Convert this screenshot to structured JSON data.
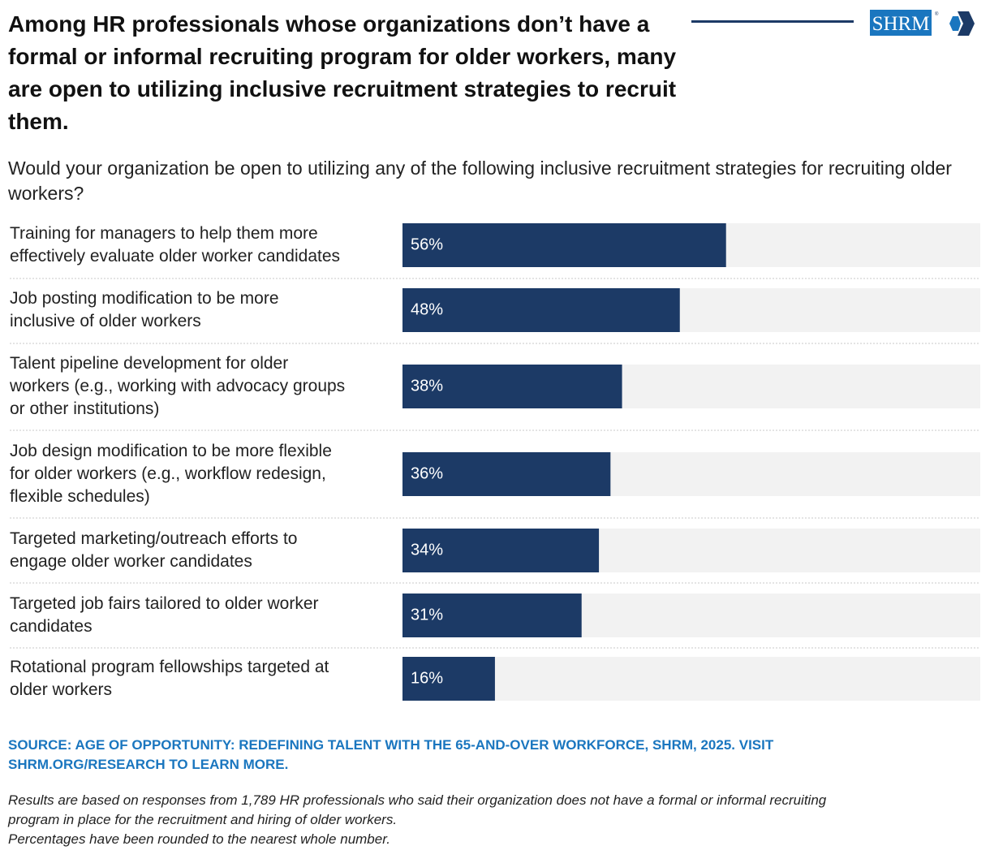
{
  "header": {
    "title": "Among HR professionals whose organizations don’t have a formal or informal recruiting program for older workers, many are open to utilizing inclusive recruitment strategies to recruit them.",
    "logo_text": "SHRM",
    "brand_color": "#1c3a66",
    "logo_blue": "#1a76bf"
  },
  "chart_data": {
    "type": "bar",
    "orientation": "horizontal",
    "title": "Would your organization be open to utilizing any of the following inclusive recruitment strategies for recruiting older workers?",
    "categories": [
      [
        "Training for managers to help them more",
        "effectively evaluate older worker candidates"
      ],
      [
        "Job posting modification to be more",
        "inclusive of older workers"
      ],
      [
        "Talent pipeline development for older",
        "workers (e.g., working with advocacy groups",
        "or other institutions)"
      ],
      [
        "Job design modification to be more flexible",
        "for older workers (e.g., workflow redesign,",
        "flexible schedules)"
      ],
      [
        "Targeted marketing/outreach efforts to",
        "engage older worker candidates"
      ],
      [
        "Targeted job fairs tailored to older worker",
        "candidates"
      ],
      [
        "Rotational program fellowships targeted at",
        "older workers"
      ]
    ],
    "values": [
      56,
      48,
      38,
      36,
      34,
      31,
      16
    ],
    "value_labels": [
      "56%",
      "48%",
      "38%",
      "36%",
      "34%",
      "31%",
      "16%"
    ],
    "xlim": [
      0,
      100
    ],
    "unit": "%",
    "bar_color": "#1c3a66",
    "track_color": "#f2f2f2",
    "label_color": "#ffffff"
  },
  "footer": {
    "source_line1": "SOURCE: AGE OF OPPORTUNITY: REDEFINING TALENT WITH THE 65-AND-OVER WORKFORCE, SHRM, 2025. VISIT",
    "source_line2": "SHRM.ORG/RESEARCH TO LEARN MORE.",
    "note_line1": "Results are based on responses from 1,789 HR professionals who said their organization does not have a formal or informal recruiting",
    "note_line2": "program in place for the recruitment and hiring of older workers.",
    "note_line3": "Percentages have been rounded to the nearest whole number."
  }
}
